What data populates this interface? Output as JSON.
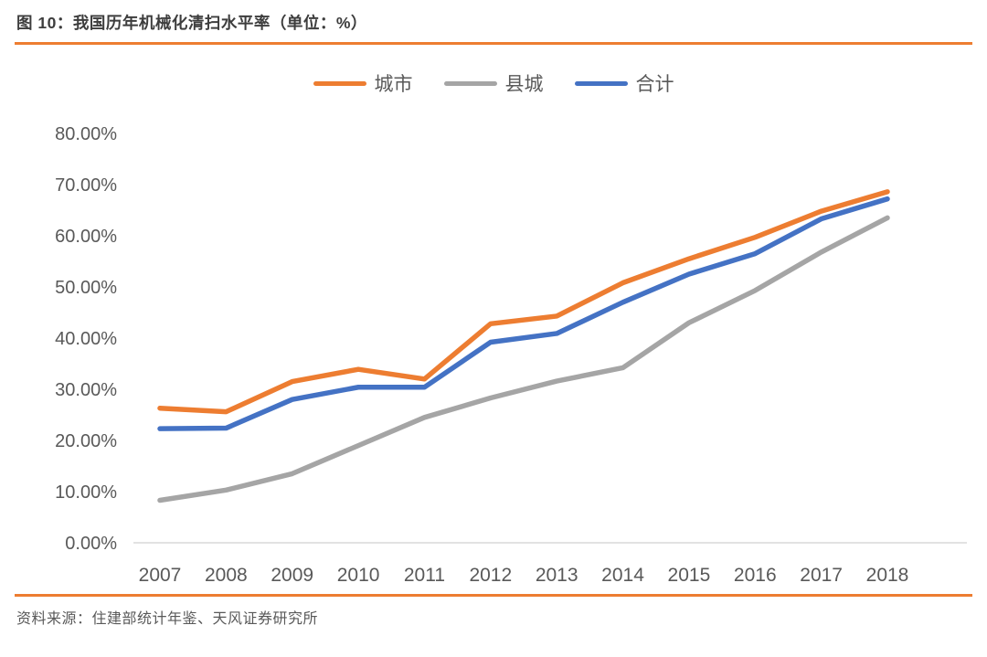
{
  "page": {
    "title": "图 10：我国历年机械化清扫水平率（单位：%）",
    "source": "资料来源：住建部统计年鉴、天风证券研究所",
    "accent_color": "#ED7D31",
    "text_color": "#595959",
    "axis_line_color": "#D9D9D9"
  },
  "chart_data": {
    "type": "line",
    "title": "我国历年机械化清扫水平率",
    "unit": "%",
    "categories": [
      "2007",
      "2008",
      "2009",
      "2010",
      "2011",
      "2012",
      "2013",
      "2014",
      "2015",
      "2016",
      "2017",
      "2018"
    ],
    "series": [
      {
        "name": "城市",
        "color": "#ED7D31",
        "values": [
          26.3,
          25.6,
          31.5,
          33.9,
          32.0,
          42.8,
          44.3,
          50.8,
          55.5,
          59.7,
          64.8,
          68.6
        ]
      },
      {
        "name": "县城",
        "color": "#A5A5A5",
        "values": [
          8.3,
          10.3,
          13.5,
          19.0,
          24.5,
          28.3,
          31.6,
          34.2,
          43.0,
          49.3,
          56.8,
          63.5
        ]
      },
      {
        "name": "合计",
        "color": "#4472C4",
        "values": [
          22.3,
          22.4,
          28.0,
          30.4,
          30.4,
          39.2,
          40.9,
          47.0,
          52.5,
          56.5,
          63.3,
          67.2
        ]
      }
    ],
    "y_ticks": [
      "80.00%",
      "70.00%",
      "60.00%",
      "50.00%",
      "40.00%",
      "30.00%",
      "20.00%",
      "10.00%",
      "0.00%"
    ],
    "ylim": [
      0,
      80
    ],
    "y_step": 10,
    "legend_position": "top",
    "grid": false
  }
}
